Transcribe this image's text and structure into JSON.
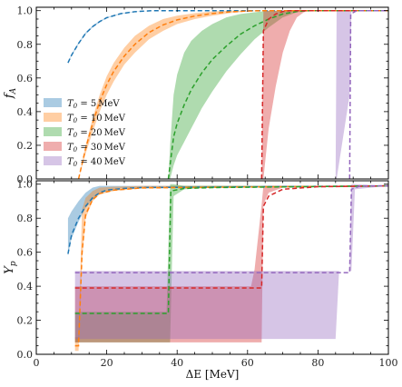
{
  "chart_data": [
    {
      "type": "area",
      "panel": "top",
      "ylabel": "f_A",
      "xlim": [
        0,
        100
      ],
      "ylim": [
        0,
        1.02
      ],
      "yticks": [
        0.0,
        0.2,
        0.4,
        0.6,
        0.8,
        1.0
      ],
      "ytick_labels": [
        "0.0",
        "0.2",
        "0.4",
        "0.6",
        "0.8",
        "1.0"
      ],
      "legend_position": "center-left",
      "series": [
        {
          "name": "T0=5MeV",
          "legend": "T_0 = 5 MeV",
          "color": "#1f77b4",
          "band": [
            [
              9,
              0.69,
              0.69
            ],
            [
              10,
              0.73,
              0.74
            ],
            [
              12,
              0.8,
              0.81
            ],
            [
              14,
              0.86,
              0.87
            ],
            [
              16,
              0.9,
              0.91
            ],
            [
              18,
              0.93,
              0.94
            ],
            [
              20,
              0.955,
              0.96
            ],
            [
              24,
              0.98,
              0.985
            ],
            [
              28,
              0.993,
              0.995
            ],
            [
              33,
              1.0,
              1.0
            ],
            [
              100,
              1.0,
              1.0
            ]
          ],
          "line": [
            [
              9,
              0.69
            ],
            [
              10,
              0.735
            ],
            [
              12,
              0.805
            ],
            [
              14,
              0.865
            ],
            [
              16,
              0.905
            ],
            [
              18,
              0.935
            ],
            [
              20,
              0.958
            ],
            [
              24,
              0.982
            ],
            [
              28,
              0.994
            ],
            [
              33,
              1.0
            ],
            [
              100,
              1.0
            ]
          ]
        },
        {
          "name": "T0=10MeV",
          "legend": "T_0 = 10 MeV",
          "color": "#ff7f0e",
          "band": [
            [
              12,
              0.0,
              0.0
            ],
            [
              14,
              0.15,
              0.2
            ],
            [
              16,
              0.28,
              0.36
            ],
            [
              18,
              0.4,
              0.5
            ],
            [
              20,
              0.5,
              0.61
            ],
            [
              22,
              0.58,
              0.69
            ],
            [
              25,
              0.68,
              0.78
            ],
            [
              28,
              0.75,
              0.85
            ],
            [
              32,
              0.83,
              0.91
            ],
            [
              36,
              0.88,
              0.95
            ],
            [
              40,
              0.92,
              0.97
            ],
            [
              45,
              0.95,
              0.985
            ],
            [
              50,
              0.97,
              0.995
            ],
            [
              55,
              0.985,
              1.0
            ],
            [
              60,
              0.995,
              1.0
            ],
            [
              65,
              1.0,
              1.0
            ],
            [
              100,
              1.0,
              1.0
            ]
          ],
          "line": [
            [
              12,
              0.0
            ],
            [
              14,
              0.18
            ],
            [
              16,
              0.33
            ],
            [
              18,
              0.46
            ],
            [
              20,
              0.56
            ],
            [
              22,
              0.64
            ],
            [
              25,
              0.73
            ],
            [
              28,
              0.8
            ],
            [
              32,
              0.87
            ],
            [
              36,
              0.915
            ],
            [
              40,
              0.945
            ],
            [
              45,
              0.968
            ],
            [
              50,
              0.983
            ],
            [
              55,
              0.993
            ],
            [
              60,
              0.998
            ],
            [
              65,
              1.0
            ],
            [
              100,
              1.0
            ]
          ]
        },
        {
          "name": "T0=20MeV",
          "legend": "T_0 = 20 MeV",
          "color": "#2ca02c",
          "band": [
            [
              37.5,
              0.0,
              0.0
            ],
            [
              38,
              0.0,
              0.2
            ],
            [
              39,
              0.08,
              0.5
            ],
            [
              40,
              0.14,
              0.62
            ],
            [
              42,
              0.22,
              0.75
            ],
            [
              44,
              0.3,
              0.82
            ],
            [
              47,
              0.42,
              0.88
            ],
            [
              50,
              0.52,
              0.92
            ],
            [
              54,
              0.64,
              0.96
            ],
            [
              58,
              0.74,
              0.98
            ],
            [
              62,
              0.83,
              0.99
            ],
            [
              66,
              0.9,
              1.0
            ],
            [
              70,
              0.96,
              1.0
            ],
            [
              74,
              0.99,
              1.0
            ],
            [
              78,
              1.0,
              1.0
            ],
            [
              100,
              1.0,
              1.0
            ]
          ],
          "line": [
            [
              37.5,
              0.0
            ],
            [
              39,
              0.25
            ],
            [
              40,
              0.33
            ],
            [
              42,
              0.44
            ],
            [
              44,
              0.53
            ],
            [
              47,
              0.63
            ],
            [
              50,
              0.71
            ],
            [
              54,
              0.79
            ],
            [
              58,
              0.86
            ],
            [
              62,
              0.91
            ],
            [
              66,
              0.95
            ],
            [
              70,
              0.98
            ],
            [
              74,
              0.995
            ],
            [
              78,
              1.0
            ],
            [
              100,
              1.0
            ]
          ]
        },
        {
          "name": "T0=30MeV",
          "legend": "T_0 = 30 MeV",
          "color": "#d62728",
          "band": [
            [
              64,
              0.0,
              0.0
            ],
            [
              64.5,
              0.0,
              1.0
            ],
            [
              66,
              0.3,
              1.0
            ],
            [
              68,
              0.55,
              1.0
            ],
            [
              70,
              0.75,
              1.0
            ],
            [
              72,
              0.88,
              1.0
            ],
            [
              74,
              0.96,
              1.0
            ],
            [
              76,
              0.99,
              1.0
            ],
            [
              78,
              1.0,
              1.0
            ],
            [
              100,
              1.0,
              1.0
            ]
          ],
          "line": [
            [
              64,
              0.0
            ],
            [
              64.5,
              0.88
            ],
            [
              66,
              0.95
            ],
            [
              68,
              0.98
            ],
            [
              70,
              0.995
            ],
            [
              72,
              1.0
            ],
            [
              100,
              1.0
            ]
          ]
        },
        {
          "name": "T0=40MeV",
          "legend": "T_0 = 40 MeV",
          "color": "#9467bd",
          "band": [
            [
              85,
              0.0,
              0.0
            ],
            [
              85.3,
              0.0,
              1.0
            ],
            [
              89,
              0.5,
              1.0
            ],
            [
              89.5,
              1.0,
              1.0
            ],
            [
              100,
              1.0,
              1.0
            ]
          ],
          "line": [
            [
              89,
              0.0
            ],
            [
              89.3,
              0.98
            ],
            [
              91,
              1.0
            ],
            [
              100,
              1.0
            ]
          ]
        }
      ]
    },
    {
      "type": "area",
      "panel": "bottom",
      "xlabel": "ΔE [MeV]",
      "ylabel": "Y_p",
      "xlim": [
        0,
        100
      ],
      "ylim": [
        0,
        1.02
      ],
      "xticks": [
        0,
        20,
        40,
        60,
        80,
        100
      ],
      "xtick_labels": [
        "0",
        "20",
        "40",
        "60",
        "80",
        "100"
      ],
      "yticks": [
        0.0,
        0.2,
        0.4,
        0.6,
        0.8,
        1.0
      ],
      "ytick_labels": [
        "0.0",
        "0.2",
        "0.4",
        "0.6",
        "0.8",
        "1.0"
      ],
      "series": [
        {
          "name": "T0=5MeV",
          "color": "#1f77b4",
          "band": [
            [
              9,
              0.58,
              0.8
            ],
            [
              10,
              0.68,
              0.84
            ],
            [
              12,
              0.78,
              0.9
            ],
            [
              14,
              0.86,
              0.95
            ],
            [
              16,
              0.91,
              0.98
            ],
            [
              18,
              0.95,
              0.99
            ],
            [
              20,
              0.96,
              0.99
            ],
            [
              24,
              0.975,
              0.99
            ],
            [
              30,
              0.98,
              0.99
            ],
            [
              100,
              0.99,
              0.99
            ]
          ],
          "line": [
            [
              9,
              0.59
            ],
            [
              10,
              0.7
            ],
            [
              12,
              0.8
            ],
            [
              14,
              0.87
            ],
            [
              16,
              0.92
            ],
            [
              18,
              0.95
            ],
            [
              20,
              0.965
            ],
            [
              25,
              0.975
            ],
            [
              30,
              0.98
            ],
            [
              100,
              0.99
            ]
          ]
        },
        {
          "name": "T0=10MeV",
          "color": "#ff7f0e",
          "band": [
            [
              11,
              0.02,
              0.1
            ],
            [
              12,
              0.02,
              0.1
            ],
            [
              13,
              0.55,
              0.85
            ],
            [
              14,
              0.8,
              0.92
            ],
            [
              16,
              0.9,
              0.96
            ],
            [
              18,
              0.94,
              0.98
            ],
            [
              22,
              0.96,
              0.985
            ],
            [
              30,
              0.975,
              0.99
            ],
            [
              100,
              0.99,
              0.99
            ]
          ],
          "line": [
            [
              11,
              0.05
            ],
            [
              12,
              0.05
            ],
            [
              13,
              0.6
            ],
            [
              14,
              0.82
            ],
            [
              16,
              0.91
            ],
            [
              18,
              0.945
            ],
            [
              22,
              0.965
            ],
            [
              30,
              0.978
            ],
            [
              100,
              0.99
            ]
          ]
        },
        {
          "name": "T0=20MeV",
          "color": "#2ca02c",
          "band": [
            [
              11,
              0.07,
              0.25
            ],
            [
              37,
              0.07,
              0.25
            ],
            [
              38,
              0.07,
              1.0
            ],
            [
              39,
              0.93,
              1.0
            ],
            [
              42,
              0.97,
              0.99
            ],
            [
              50,
              0.98,
              0.99
            ],
            [
              100,
              0.99,
              0.99
            ]
          ],
          "line": [
            [
              11,
              0.24
            ],
            [
              37.5,
              0.24
            ],
            [
              38.2,
              0.96
            ],
            [
              42,
              0.975
            ],
            [
              50,
              0.98
            ],
            [
              100,
              0.99
            ]
          ]
        },
        {
          "name": "T0=30MeV",
          "color": "#d62728",
          "band": [
            [
              11,
              0.07,
              0.4
            ],
            [
              61,
              0.07,
              0.4
            ],
            [
              62,
              0.07,
              0.5
            ],
            [
              64,
              0.07,
              0.88
            ],
            [
              64.5,
              0.88,
              0.99
            ],
            [
              66,
              0.95,
              0.99
            ],
            [
              70,
              0.98,
              0.99
            ],
            [
              100,
              0.99,
              0.99
            ]
          ],
          "line": [
            [
              11,
              0.39
            ],
            [
              64,
              0.39
            ],
            [
              64.5,
              0.87
            ],
            [
              66,
              0.93
            ],
            [
              70,
              0.97
            ],
            [
              80,
              0.985
            ],
            [
              100,
              0.99
            ]
          ]
        },
        {
          "name": "T0=40MeV",
          "color": "#9467bd",
          "band": [
            [
              11,
              0.09,
              0.49
            ],
            [
              85,
              0.09,
              0.49
            ],
            [
              86,
              0.49,
              0.49
            ],
            [
              89,
              0.49,
              0.49
            ],
            [
              89.5,
              0.49,
              1.0
            ],
            [
              90.5,
              0.97,
              1.0
            ],
            [
              100,
              0.99,
              0.99
            ]
          ],
          "line": [
            [
              11,
              0.48
            ],
            [
              89,
              0.48
            ],
            [
              89.5,
              0.97
            ],
            [
              92,
              0.99
            ],
            [
              100,
              0.99
            ]
          ]
        }
      ]
    }
  ]
}
